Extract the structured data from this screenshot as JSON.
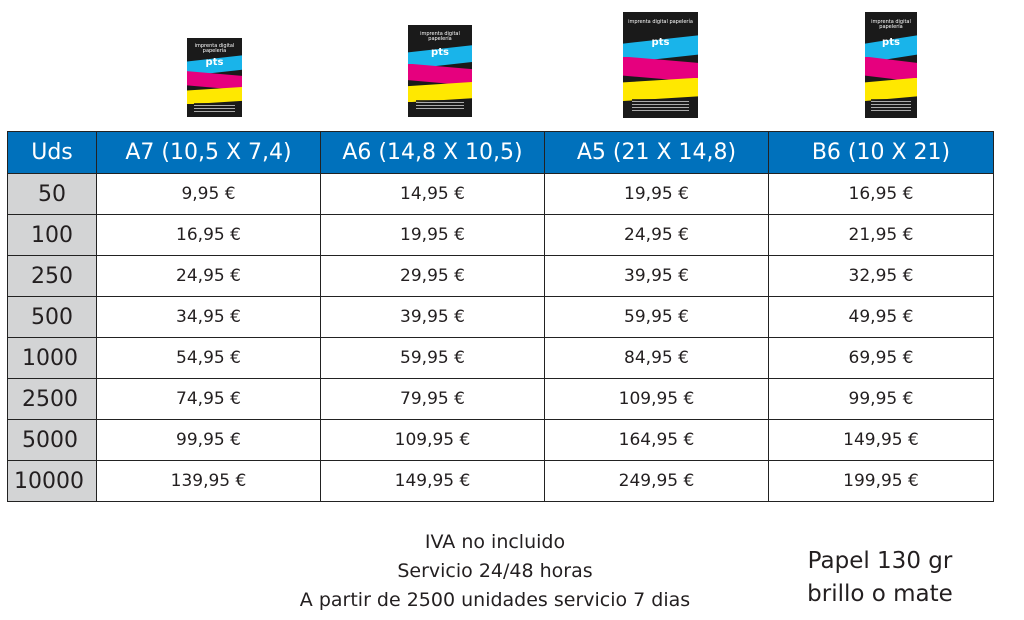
{
  "flyer_header": "imprenta digital papelería",
  "flyer_logo": "pts",
  "flyer_logo_icon": "pts-logo-icon",
  "brand_colors": {
    "cyan": "#19b4ea",
    "magenta": "#e6007e",
    "yellow": "#ffe800",
    "header_blue": "#0071bc",
    "qty_gray": "#d3d4d5"
  },
  "table": {
    "headers": [
      "Uds",
      "A7 (10,5 X 7,4)",
      "A6 (14,8 X 10,5)",
      "A5 (21 X 14,8)",
      "B6 (10 X 21)"
    ],
    "rows": [
      {
        "qty": "50",
        "prices": [
          "9,95 €",
          "14,95 €",
          "19,95 €",
          "16,95 €"
        ]
      },
      {
        "qty": "100",
        "prices": [
          "16,95 €",
          "19,95 €",
          "24,95 €",
          "21,95 €"
        ]
      },
      {
        "qty": "250",
        "prices": [
          "24,95 €",
          "29,95 €",
          "39,95 €",
          "32,95 €"
        ]
      },
      {
        "qty": "500",
        "prices": [
          "34,95 €",
          "39,95 €",
          "59,95 €",
          "49,95 €"
        ]
      },
      {
        "qty": "1000",
        "prices": [
          "54,95 €",
          "59,95 €",
          "84,95 €",
          "69,95 €"
        ]
      },
      {
        "qty": "2500",
        "prices": [
          "74,95 €",
          "79,95 €",
          "109,95 €",
          "99,95 €"
        ]
      },
      {
        "qty": "5000",
        "prices": [
          "99,95 €",
          "109,95 €",
          "164,95 €",
          "149,95 €"
        ]
      },
      {
        "qty": "10000",
        "prices": [
          "139,95 €",
          "149,95 €",
          "249,95 €",
          "199,95 €"
        ]
      }
    ]
  },
  "notes": [
    "IVA no incluido",
    "Servicio 24/48 horas",
    "A partir de 2500 unidades servicio 7 dias"
  ],
  "paper": [
    "Papel 130 gr",
    "brillo o mate"
  ]
}
